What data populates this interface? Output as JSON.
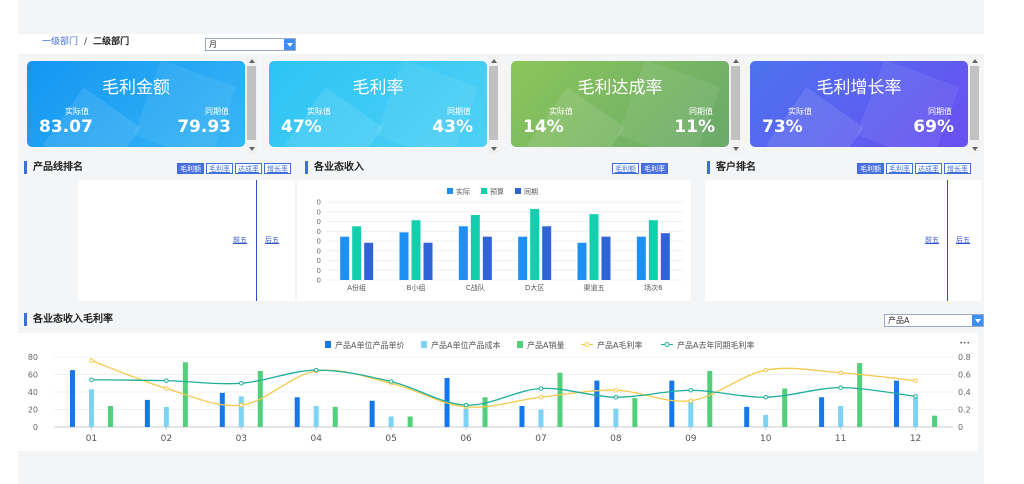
{
  "breadcrumb": {
    "level1": "一级部门",
    "separator": "/",
    "level2": "二级部门"
  },
  "period_select": {
    "value": "月"
  },
  "kpis": [
    {
      "title": "毛利金额",
      "actual_label": "实际值",
      "actual": "83.07",
      "prior_label": "同期值",
      "prior": "79.93",
      "color_from": "#1296f2",
      "color_to": "#38b6f5"
    },
    {
      "title": "毛利率",
      "actual_label": "实际值",
      "actual": "47%",
      "prior_label": "同期值",
      "prior": "43%",
      "color_from": "#2cc4f3",
      "color_to": "#4fd0f6"
    },
    {
      "title": "毛利达成率",
      "actual_label": "实际值",
      "actual": "14%",
      "prior_label": "同期值",
      "prior": "11%",
      "color_from": "#8bc65a",
      "color_to": "#6aa96b"
    },
    {
      "title": "毛利增长率",
      "actual_label": "实际值",
      "actual": "73%",
      "prior_label": "同期值",
      "prior": "69%",
      "color_from": "#4c73ef",
      "color_to": "#6a4ff0"
    }
  ],
  "product_line": {
    "title": "产品线排名",
    "tabs": [
      "毛利额",
      "毛利率",
      "达成率",
      "增长率"
    ],
    "top_link": "前五",
    "bottom_link": "后五"
  },
  "business_revenue": {
    "title": "各业态收入",
    "tabs": [
      "毛利额",
      "毛利率"
    ]
  },
  "customer_rank": {
    "title": "客户排名",
    "tabs": [
      "毛利额",
      "毛利率",
      "达成率",
      "增长率"
    ],
    "top_link": "前五",
    "bottom_link": "后五"
  },
  "margin_section": {
    "title": "各业态收入毛利率",
    "product_select": "产品A",
    "menu_icon": "more-dots-icon"
  },
  "chart_data": [
    {
      "type": "bar",
      "categories": [
        "A份组",
        "B小组",
        "C战队",
        "D大区",
        "渠道五",
        "场次6"
      ],
      "series": [
        {
          "name": "实际",
          "values": [
            5,
            5.5,
            6.2,
            5,
            4.3,
            5
          ],
          "color": "#1e8ff5"
        },
        {
          "name": "预算",
          "values": [
            6.2,
            6.9,
            7.5,
            8.2,
            7.6,
            6.9
          ],
          "color": "#14cfae"
        },
        {
          "name": "同期",
          "values": [
            4.3,
            4.3,
            5,
            6.2,
            5,
            5.4
          ],
          "color": "#2f63d6"
        }
      ],
      "y_ticks": [
        "0",
        "0",
        "0",
        "0",
        "0",
        "0",
        "0",
        "0",
        "0"
      ],
      "ylim": [
        0,
        9
      ],
      "legend": "top-center"
    },
    {
      "type": "bar",
      "categories": [
        "01",
        "02",
        "03",
        "04",
        "05",
        "06",
        "07",
        "08",
        "09",
        "10",
        "11",
        "12"
      ],
      "series": [
        {
          "name": "产品A单位产品单价",
          "kind": "bar",
          "axis": "left",
          "color": "#1478e8",
          "values": [
            65,
            31,
            39,
            34,
            30,
            56,
            24,
            53,
            53,
            23,
            34,
            53
          ]
        },
        {
          "name": "产品A单位产品成本",
          "kind": "bar",
          "axis": "left",
          "color": "#7dd3f3",
          "values": [
            43,
            23,
            35,
            24,
            12,
            21,
            20,
            21,
            31,
            14,
            24,
            35
          ]
        },
        {
          "name": "产品A销量",
          "kind": "bar",
          "axis": "left",
          "color": "#52cf7a",
          "values": [
            24,
            74,
            64,
            23,
            12,
            34,
            62,
            33,
            64,
            44,
            73,
            13
          ]
        },
        {
          "name": "产品A毛利率",
          "kind": "line",
          "axis": "right",
          "color": "#f5c94a",
          "values": [
            0.76,
            0.44,
            0.25,
            0.64,
            0.5,
            0.23,
            0.34,
            0.42,
            0.3,
            0.65,
            0.62,
            0.53
          ]
        },
        {
          "name": "产品A去年同期毛利率",
          "kind": "line",
          "axis": "right",
          "color": "#1fae9b",
          "values": [
            0.54,
            0.53,
            0.5,
            0.65,
            0.52,
            0.25,
            0.44,
            0.34,
            0.42,
            0.34,
            0.45,
            0.35
          ]
        }
      ],
      "y_left_ticks": [
        "0",
        "20",
        "40",
        "60",
        "80"
      ],
      "y_right_ticks": [
        "0",
        "0.2",
        "0.4",
        "0.6",
        "0.8"
      ],
      "ylim_left": [
        0,
        80
      ],
      "ylim_right": [
        0,
        0.8
      ],
      "legend": "top-center"
    }
  ]
}
